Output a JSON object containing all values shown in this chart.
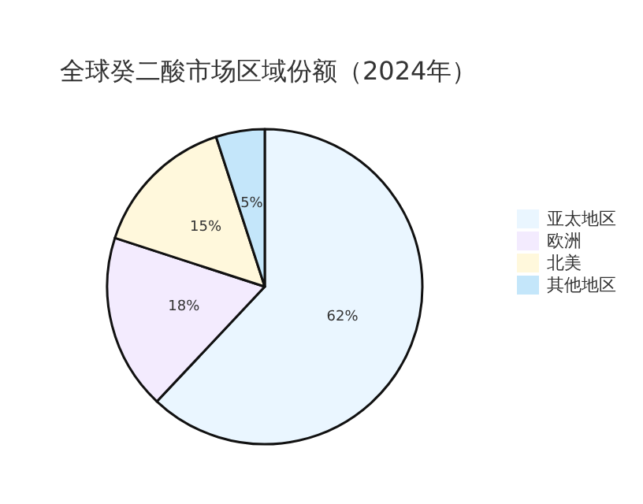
{
  "chart_data": {
    "type": "pie",
    "title": "全球癸二酸市场区域份额（2024年）",
    "categories": [
      "亚太地区",
      "欧洲",
      "北美",
      "其他地区"
    ],
    "values": [
      62,
      18,
      15,
      5
    ],
    "colors": [
      "#eaf6ff",
      "#f3ebfe",
      "#fff8dc",
      "#c4e6fa"
    ],
    "value_labels": [
      "62%",
      "18%",
      "15%",
      "5%"
    ],
    "legend": "right"
  }
}
